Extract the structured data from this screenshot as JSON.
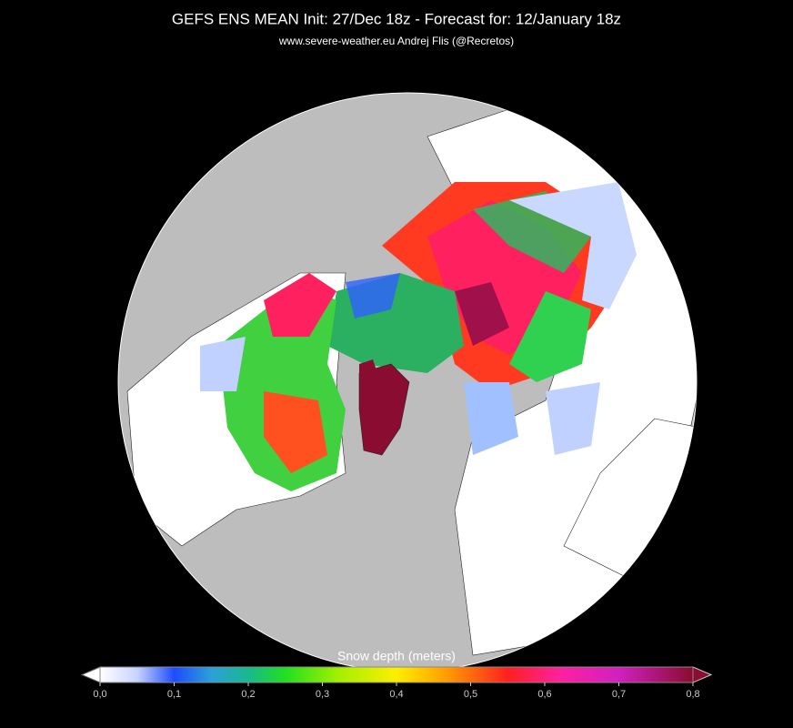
{
  "header": {
    "title": "GEFS ENS MEAN Init: 27/Dec 18z  - Forecast for: 12/January 18z",
    "subtitle": "www.severe-weather.eu   Andrej Flis (@Recretos)"
  },
  "colorbar": {
    "label": "Snow depth (meters)",
    "range": [
      0,
      0.8
    ],
    "ticks": [
      {
        "value": 0,
        "label": "0,0"
      },
      {
        "value": 0.1,
        "label": "0,1"
      },
      {
        "value": 0.2,
        "label": "0,2"
      },
      {
        "value": 0.3,
        "label": "0,3"
      },
      {
        "value": 0.4,
        "label": "0,4"
      },
      {
        "value": 0.5,
        "label": "0,5"
      },
      {
        "value": 0.6,
        "label": "0,6"
      },
      {
        "value": 0.7,
        "label": "0,7"
      },
      {
        "value": 0.8,
        "label": "0,8"
      }
    ],
    "stops": [
      {
        "value": 0,
        "color": "#ffffff"
      },
      {
        "value": 0.05,
        "color": "#c8d4ff"
      },
      {
        "value": 0.1,
        "color": "#1e4cff"
      },
      {
        "value": 0.15,
        "color": "#2aa0d8"
      },
      {
        "value": 0.2,
        "color": "#18b890"
      },
      {
        "value": 0.25,
        "color": "#20e020"
      },
      {
        "value": 0.32,
        "color": "#a0f000"
      },
      {
        "value": 0.4,
        "color": "#ffee00"
      },
      {
        "value": 0.47,
        "color": "#ff9a00"
      },
      {
        "value": 0.55,
        "color": "#ff2020"
      },
      {
        "value": 0.62,
        "color": "#ff20a0"
      },
      {
        "value": 0.7,
        "color": "#d020c0"
      },
      {
        "value": 0.8,
        "color": "#8a0c30"
      }
    ]
  }
}
